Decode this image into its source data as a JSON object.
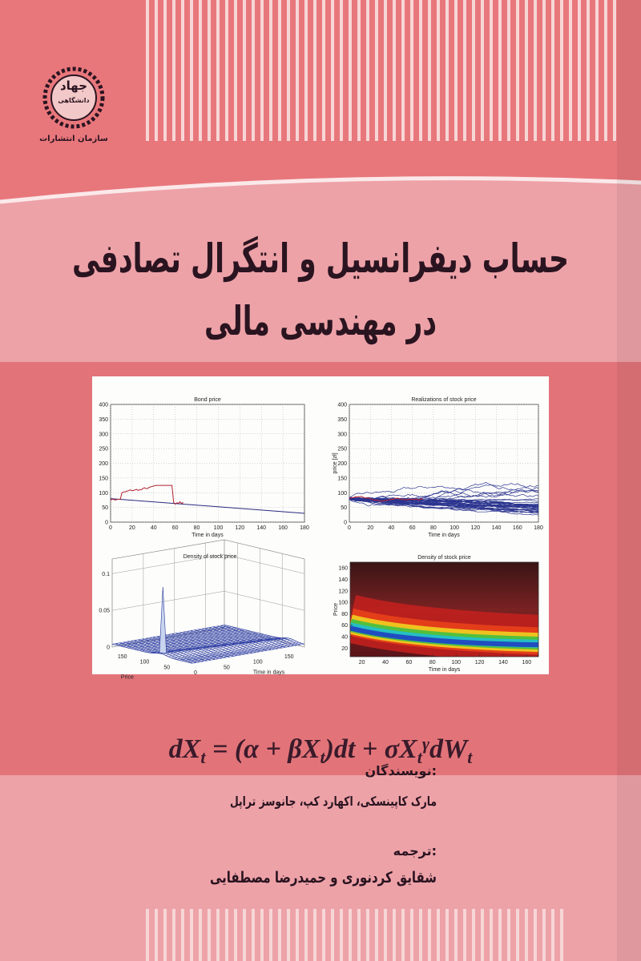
{
  "publisher": {
    "logo_name": "جهاد",
    "logo_sub": "دانشگاهی",
    "name": "سازمان انتشارات"
  },
  "title": {
    "line1": "حساب دیفرانسیل و انتگرال تصادفی",
    "line2": "در مهندسی مالی"
  },
  "figures": [
    {
      "title": "Bond price",
      "xlabel": "Time in days",
      "xlim": [
        0,
        180
      ],
      "xticks": [
        0,
        20,
        40,
        60,
        80,
        100,
        120,
        140,
        160,
        180
      ],
      "ylim": [
        0,
        400
      ],
      "yticks": [
        0,
        50,
        100,
        150,
        200,
        250,
        300,
        350,
        400
      ]
    },
    {
      "title": "Realizations of stock price",
      "xlabel": "Time in days",
      "ylabel": "price [zł]",
      "xlim": [
        0,
        180
      ],
      "xticks": [
        0,
        20,
        40,
        60,
        80,
        100,
        120,
        140,
        160,
        180
      ],
      "ylim": [
        0,
        400
      ],
      "yticks": [
        0,
        50,
        100,
        150,
        200,
        250,
        300,
        350,
        400
      ]
    },
    {
      "title": "Density of stock price",
      "xlabel": "Time in days",
      "ylabel": "Price",
      "xlim": [
        0,
        180
      ],
      "xticks": [
        0,
        50,
        100,
        150
      ],
      "ylim": [
        0,
        180
      ],
      "yticks": [
        150,
        100,
        50
      ],
      "zlim": [
        0,
        0.12
      ],
      "zticks": [
        0,
        0.05,
        0.1
      ]
    },
    {
      "title": "Density of stock price",
      "xlabel": "Time in days",
      "ylabel": "Price",
      "xlim": [
        10,
        170
      ],
      "xticks": [
        20,
        40,
        60,
        80,
        100,
        120,
        140,
        160
      ],
      "ylim": [
        5,
        170
      ],
      "yticks": [
        20,
        40,
        60,
        80,
        100,
        120,
        140,
        160
      ]
    }
  ],
  "formula": {
    "parts": [
      {
        "text": "dX"
      },
      {
        "text": "t",
        "pos": "sub"
      },
      {
        "text": " = (α + βX"
      },
      {
        "text": "t",
        "pos": "sub"
      },
      {
        "text": ")dt + σX"
      },
      {
        "text": "t",
        "pos": "sub"
      },
      {
        "text": "γ",
        "pos": "sup"
      },
      {
        "text": "dW"
      },
      {
        "text": "t",
        "pos": "sub"
      }
    ]
  },
  "authors": {
    "label": "نویسندگان:",
    "names": "مارک کاپینسکی، اکهارد کپ، جانوسز تراپل"
  },
  "translators": {
    "label": "ترجمه:",
    "names": "شقایق کردنوری و حمیدرضا مصطفایی"
  }
}
